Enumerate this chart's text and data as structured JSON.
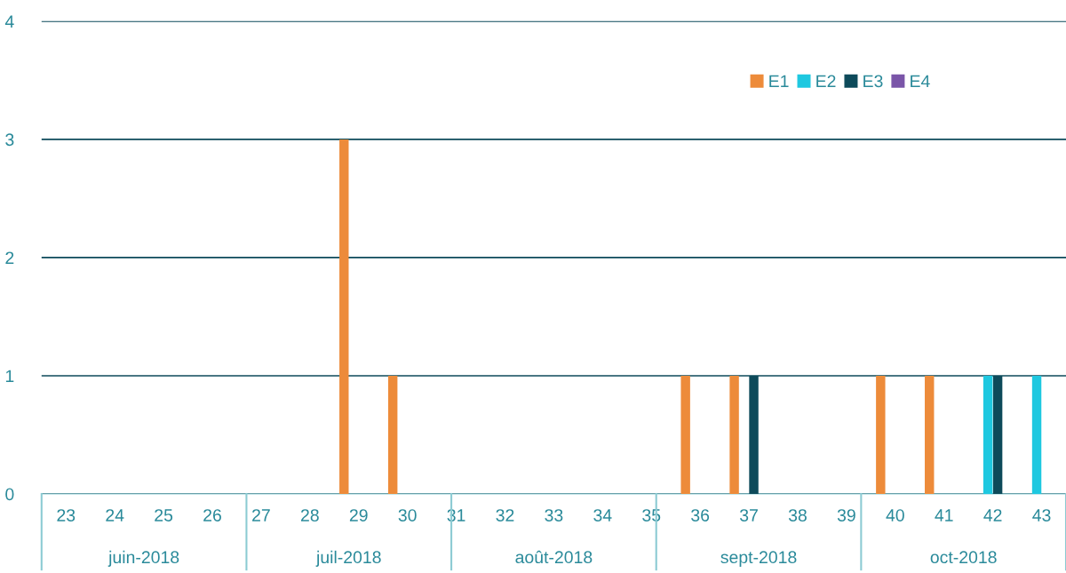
{
  "chart_data": {
    "type": "bar",
    "categories": [
      "23",
      "24",
      "25",
      "26",
      "27",
      "28",
      "29",
      "30",
      "31",
      "32",
      "33",
      "34",
      "35",
      "36",
      "37",
      "38",
      "39",
      "40",
      "41",
      "42",
      "43"
    ],
    "series": [
      {
        "name": "E1",
        "color": "#ed8b3a",
        "values": [
          0,
          0,
          0,
          0,
          0,
          0,
          3,
          1,
          0,
          0,
          0,
          0,
          0,
          1,
          1,
          0,
          0,
          1,
          1,
          0,
          0
        ]
      },
      {
        "name": "E2",
        "color": "#1ec8e0",
        "values": [
          0,
          0,
          0,
          0,
          0,
          0,
          0,
          0,
          0,
          0,
          0,
          0,
          0,
          0,
          0,
          0,
          0,
          0,
          0,
          1,
          1
        ]
      },
      {
        "name": "E3",
        "color": "#0d4a5a",
        "values": [
          0,
          0,
          0,
          0,
          0,
          0,
          0,
          0,
          0,
          0,
          0,
          0,
          0,
          0,
          1,
          0,
          0,
          0,
          0,
          1,
          0
        ]
      },
      {
        "name": "E4",
        "color": "#7a55a8",
        "values": [
          0,
          0,
          0,
          0,
          0,
          0,
          0,
          0,
          0,
          0,
          0,
          0,
          0,
          0,
          0,
          0,
          0,
          0,
          0,
          0,
          0
        ]
      }
    ],
    "annotations": [
      "juin-2018",
      "juil-2018",
      "août-2018",
      "sept-2018",
      "oct-2018"
    ],
    "ylim": [
      0,
      4
    ],
    "yticks": [
      0,
      1,
      2,
      3,
      4
    ],
    "grid": "y",
    "legend": "top right"
  }
}
